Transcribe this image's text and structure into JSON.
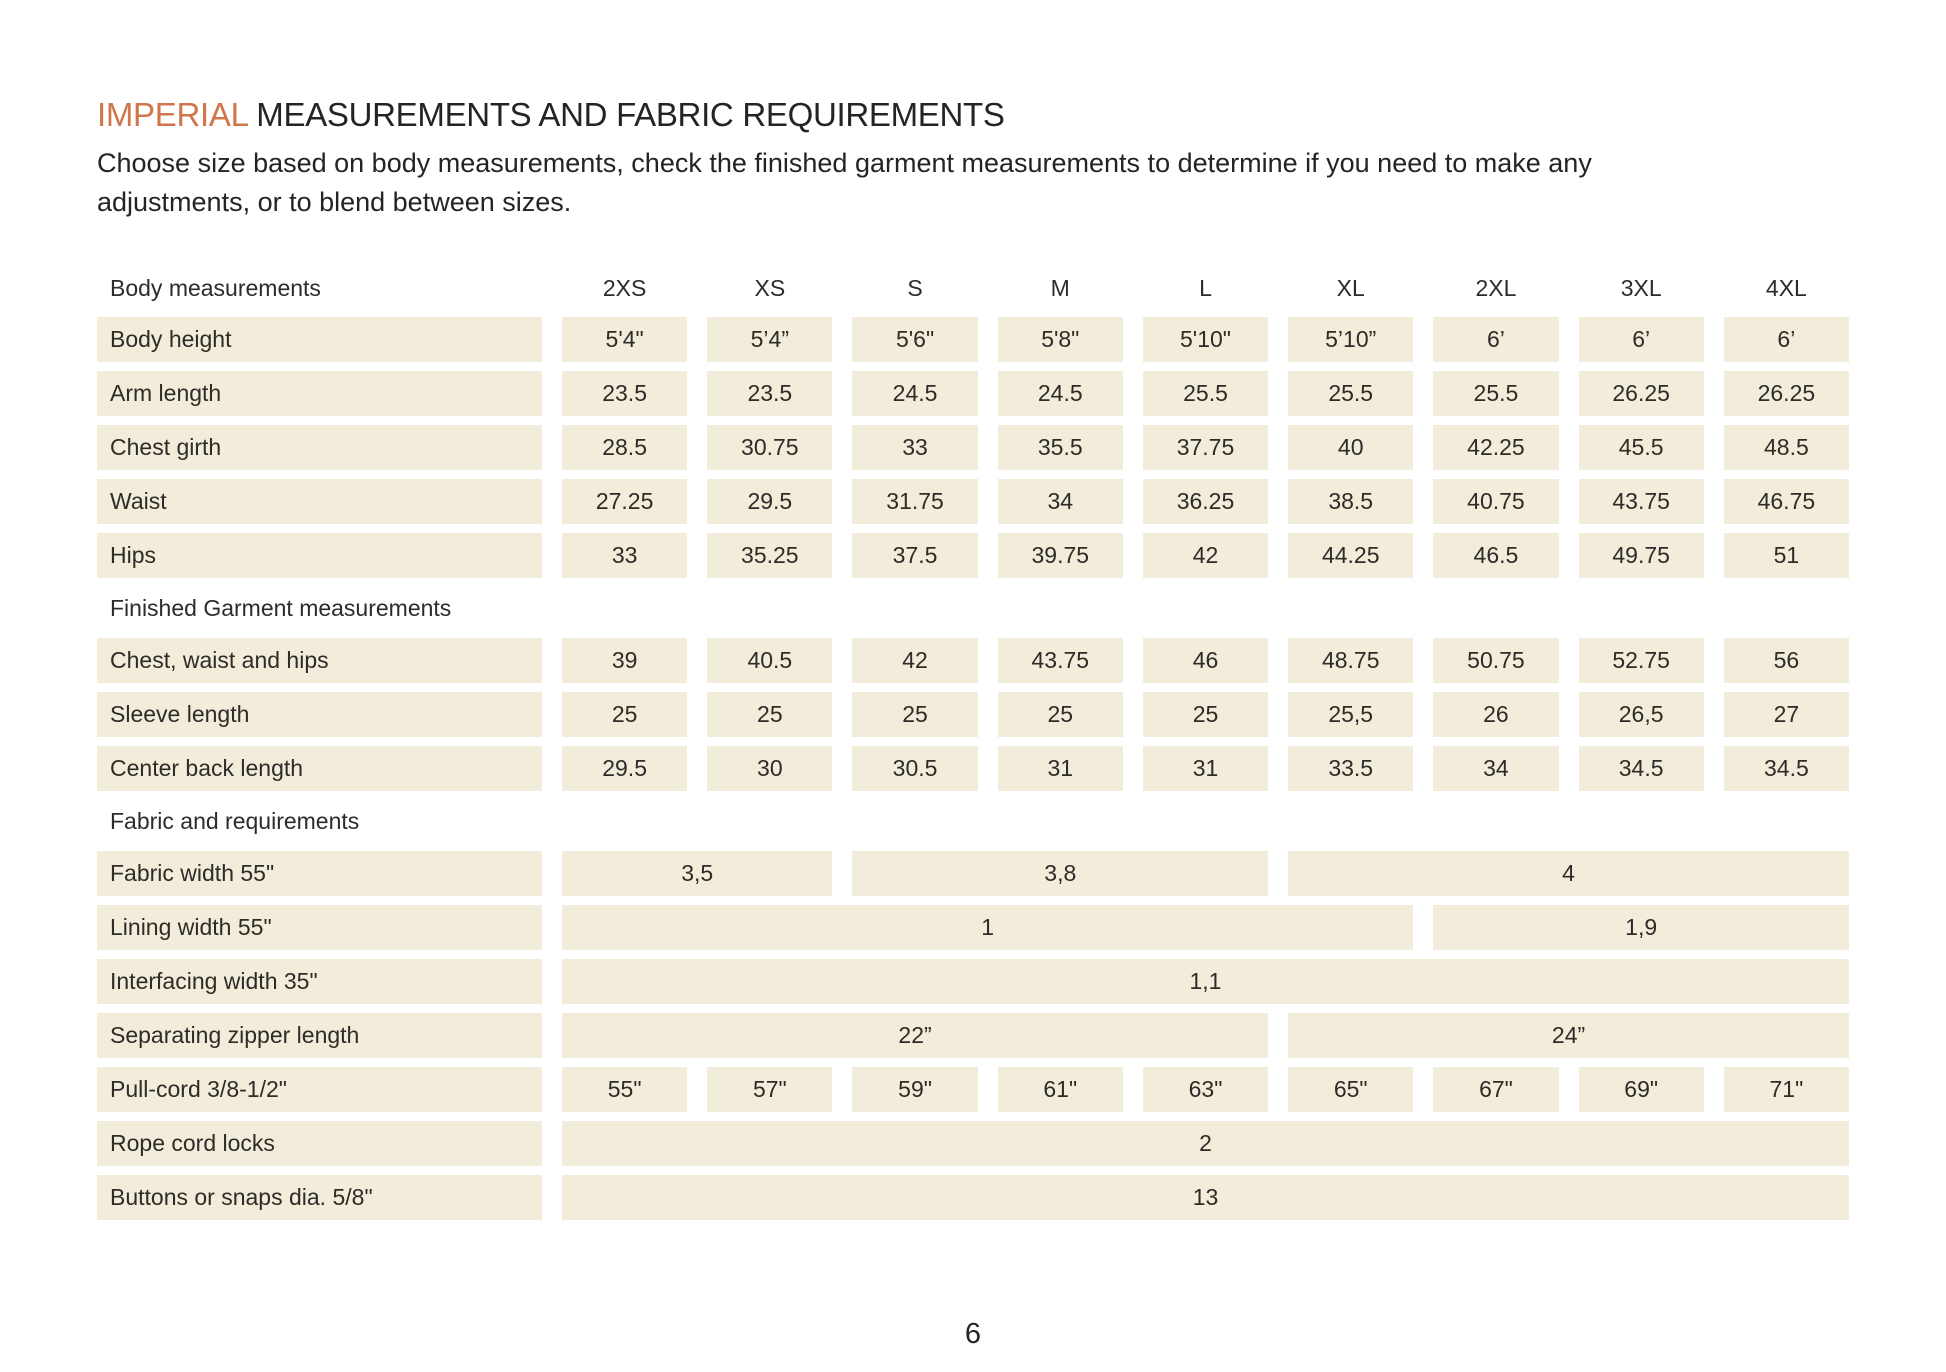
{
  "document": {
    "title": {
      "highlight": "IMPERIAL",
      "rest": " MEASUREMENTS AND FABRIC REQUIREMENTS"
    },
    "subtitle_line1": "Choose size based on body measurements, check the finished garment measurements to determine if you need to make any",
    "subtitle_line2": "adjustments, or to blend between sizes.",
    "page_number": "6"
  },
  "colors": {
    "accent_orange": "#d1764a",
    "cell_beige": "#f2ecda",
    "text_dark": "#2e2b28"
  },
  "table": {
    "rows": [
      {
        "type": "size-header",
        "label": "Body measurements",
        "sizes": [
          "2XS",
          "XS",
          "S",
          "M",
          "L",
          "XL",
          "2XL",
          "3XL",
          "4XL"
        ]
      },
      {
        "type": "data",
        "label": "Body height",
        "cells": [
          {
            "t": "5'4\""
          },
          {
            "t": "5’4”"
          },
          {
            "t": "5'6\""
          },
          {
            "t": "5'8\""
          },
          {
            "t": "5'10\""
          },
          {
            "t": "5’10”"
          },
          {
            "t": "6’"
          },
          {
            "t": "6’"
          },
          {
            "t": "6’"
          }
        ]
      },
      {
        "type": "data",
        "label": "Arm length",
        "cells": [
          {
            "t": "23.5"
          },
          {
            "t": "23.5"
          },
          {
            "t": "24.5"
          },
          {
            "t": "24.5"
          },
          {
            "t": "25.5"
          },
          {
            "t": "25.5"
          },
          {
            "t": "25.5"
          },
          {
            "t": "26.25"
          },
          {
            "t": "26.25"
          }
        ]
      },
      {
        "type": "data",
        "label": "Chest girth",
        "cells": [
          {
            "t": "28.5"
          },
          {
            "t": "30.75"
          },
          {
            "t": "33"
          },
          {
            "t": "35.5"
          },
          {
            "t": "37.75"
          },
          {
            "t": "40"
          },
          {
            "t": "42.25"
          },
          {
            "t": "45.5"
          },
          {
            "t": "48.5"
          }
        ]
      },
      {
        "type": "data",
        "label": "Waist",
        "cells": [
          {
            "t": "27.25"
          },
          {
            "t": "29.5"
          },
          {
            "t": "31.75"
          },
          {
            "t": "34"
          },
          {
            "t": "36.25"
          },
          {
            "t": "38.5"
          },
          {
            "t": "40.75"
          },
          {
            "t": "43.75"
          },
          {
            "t": "46.75"
          }
        ]
      },
      {
        "type": "data",
        "label": "Hips",
        "cells": [
          {
            "t": "33"
          },
          {
            "t": "35.25"
          },
          {
            "t": "37.5"
          },
          {
            "t": "39.75"
          },
          {
            "t": "42"
          },
          {
            "t": "44.25"
          },
          {
            "t": "46.5"
          },
          {
            "t": "49.75"
          },
          {
            "t": "51"
          }
        ]
      },
      {
        "type": "section",
        "label": "Finished Garment measurements"
      },
      {
        "type": "data",
        "label": "Chest, waist and hips",
        "cells": [
          {
            "t": "39"
          },
          {
            "t": "40.5"
          },
          {
            "t": "42"
          },
          {
            "t": "43.75"
          },
          {
            "t": "46"
          },
          {
            "t": "48.75"
          },
          {
            "t": "50.75"
          },
          {
            "t": "52.75"
          },
          {
            "t": "56"
          }
        ]
      },
      {
        "type": "data",
        "label": "Sleeve length",
        "cells": [
          {
            "t": "25"
          },
          {
            "t": "25"
          },
          {
            "t": "25"
          },
          {
            "t": "25"
          },
          {
            "t": "25"
          },
          {
            "t": "25,5"
          },
          {
            "t": "26"
          },
          {
            "t": "26,5"
          },
          {
            "t": "27"
          }
        ]
      },
      {
        "type": "data",
        "label": "Center back length",
        "cells": [
          {
            "t": "29.5"
          },
          {
            "t": "30"
          },
          {
            "t": "30.5"
          },
          {
            "t": "31"
          },
          {
            "t": "31"
          },
          {
            "t": "33.5"
          },
          {
            "t": "34"
          },
          {
            "t": "34.5"
          },
          {
            "t": "34.5"
          }
        ]
      },
      {
        "type": "section",
        "label": "Fabric and requirements"
      },
      {
        "type": "data",
        "label": "Fabric width 55\"",
        "cells": [
          {
            "t": "3,5",
            "span": 2
          },
          {
            "t": "3,8",
            "span": 3
          },
          {
            "t": "4",
            "span": 4
          }
        ]
      },
      {
        "type": "data",
        "label": "Lining width 55\"",
        "cells": [
          {
            "t": "1",
            "span": 6
          },
          {
            "t": "1,9",
            "span": 3
          }
        ]
      },
      {
        "type": "data",
        "label": "Interfacing width 35\"",
        "cells": [
          {
            "t": "1,1",
            "span": 9
          }
        ]
      },
      {
        "type": "data",
        "label": "Separating zipper length",
        "cells": [
          {
            "t": "22”",
            "span": 5
          },
          {
            "t": "24”",
            "span": 4
          }
        ]
      },
      {
        "type": "data",
        "label": "Pull-cord 3/8-1/2\"",
        "cells": [
          {
            "t": "55\""
          },
          {
            "t": "57\""
          },
          {
            "t": "59\""
          },
          {
            "t": "61\""
          },
          {
            "t": "63\""
          },
          {
            "t": "65\""
          },
          {
            "t": "67\""
          },
          {
            "t": "69\""
          },
          {
            "t": "71\""
          }
        ]
      },
      {
        "type": "data",
        "label": "Rope cord locks",
        "cells": [
          {
            "t": "2",
            "span": 9
          }
        ]
      },
      {
        "type": "data",
        "label": "Buttons or snaps dia. 5/8\"",
        "cells": [
          {
            "t": "13",
            "span": 9
          }
        ]
      }
    ]
  }
}
